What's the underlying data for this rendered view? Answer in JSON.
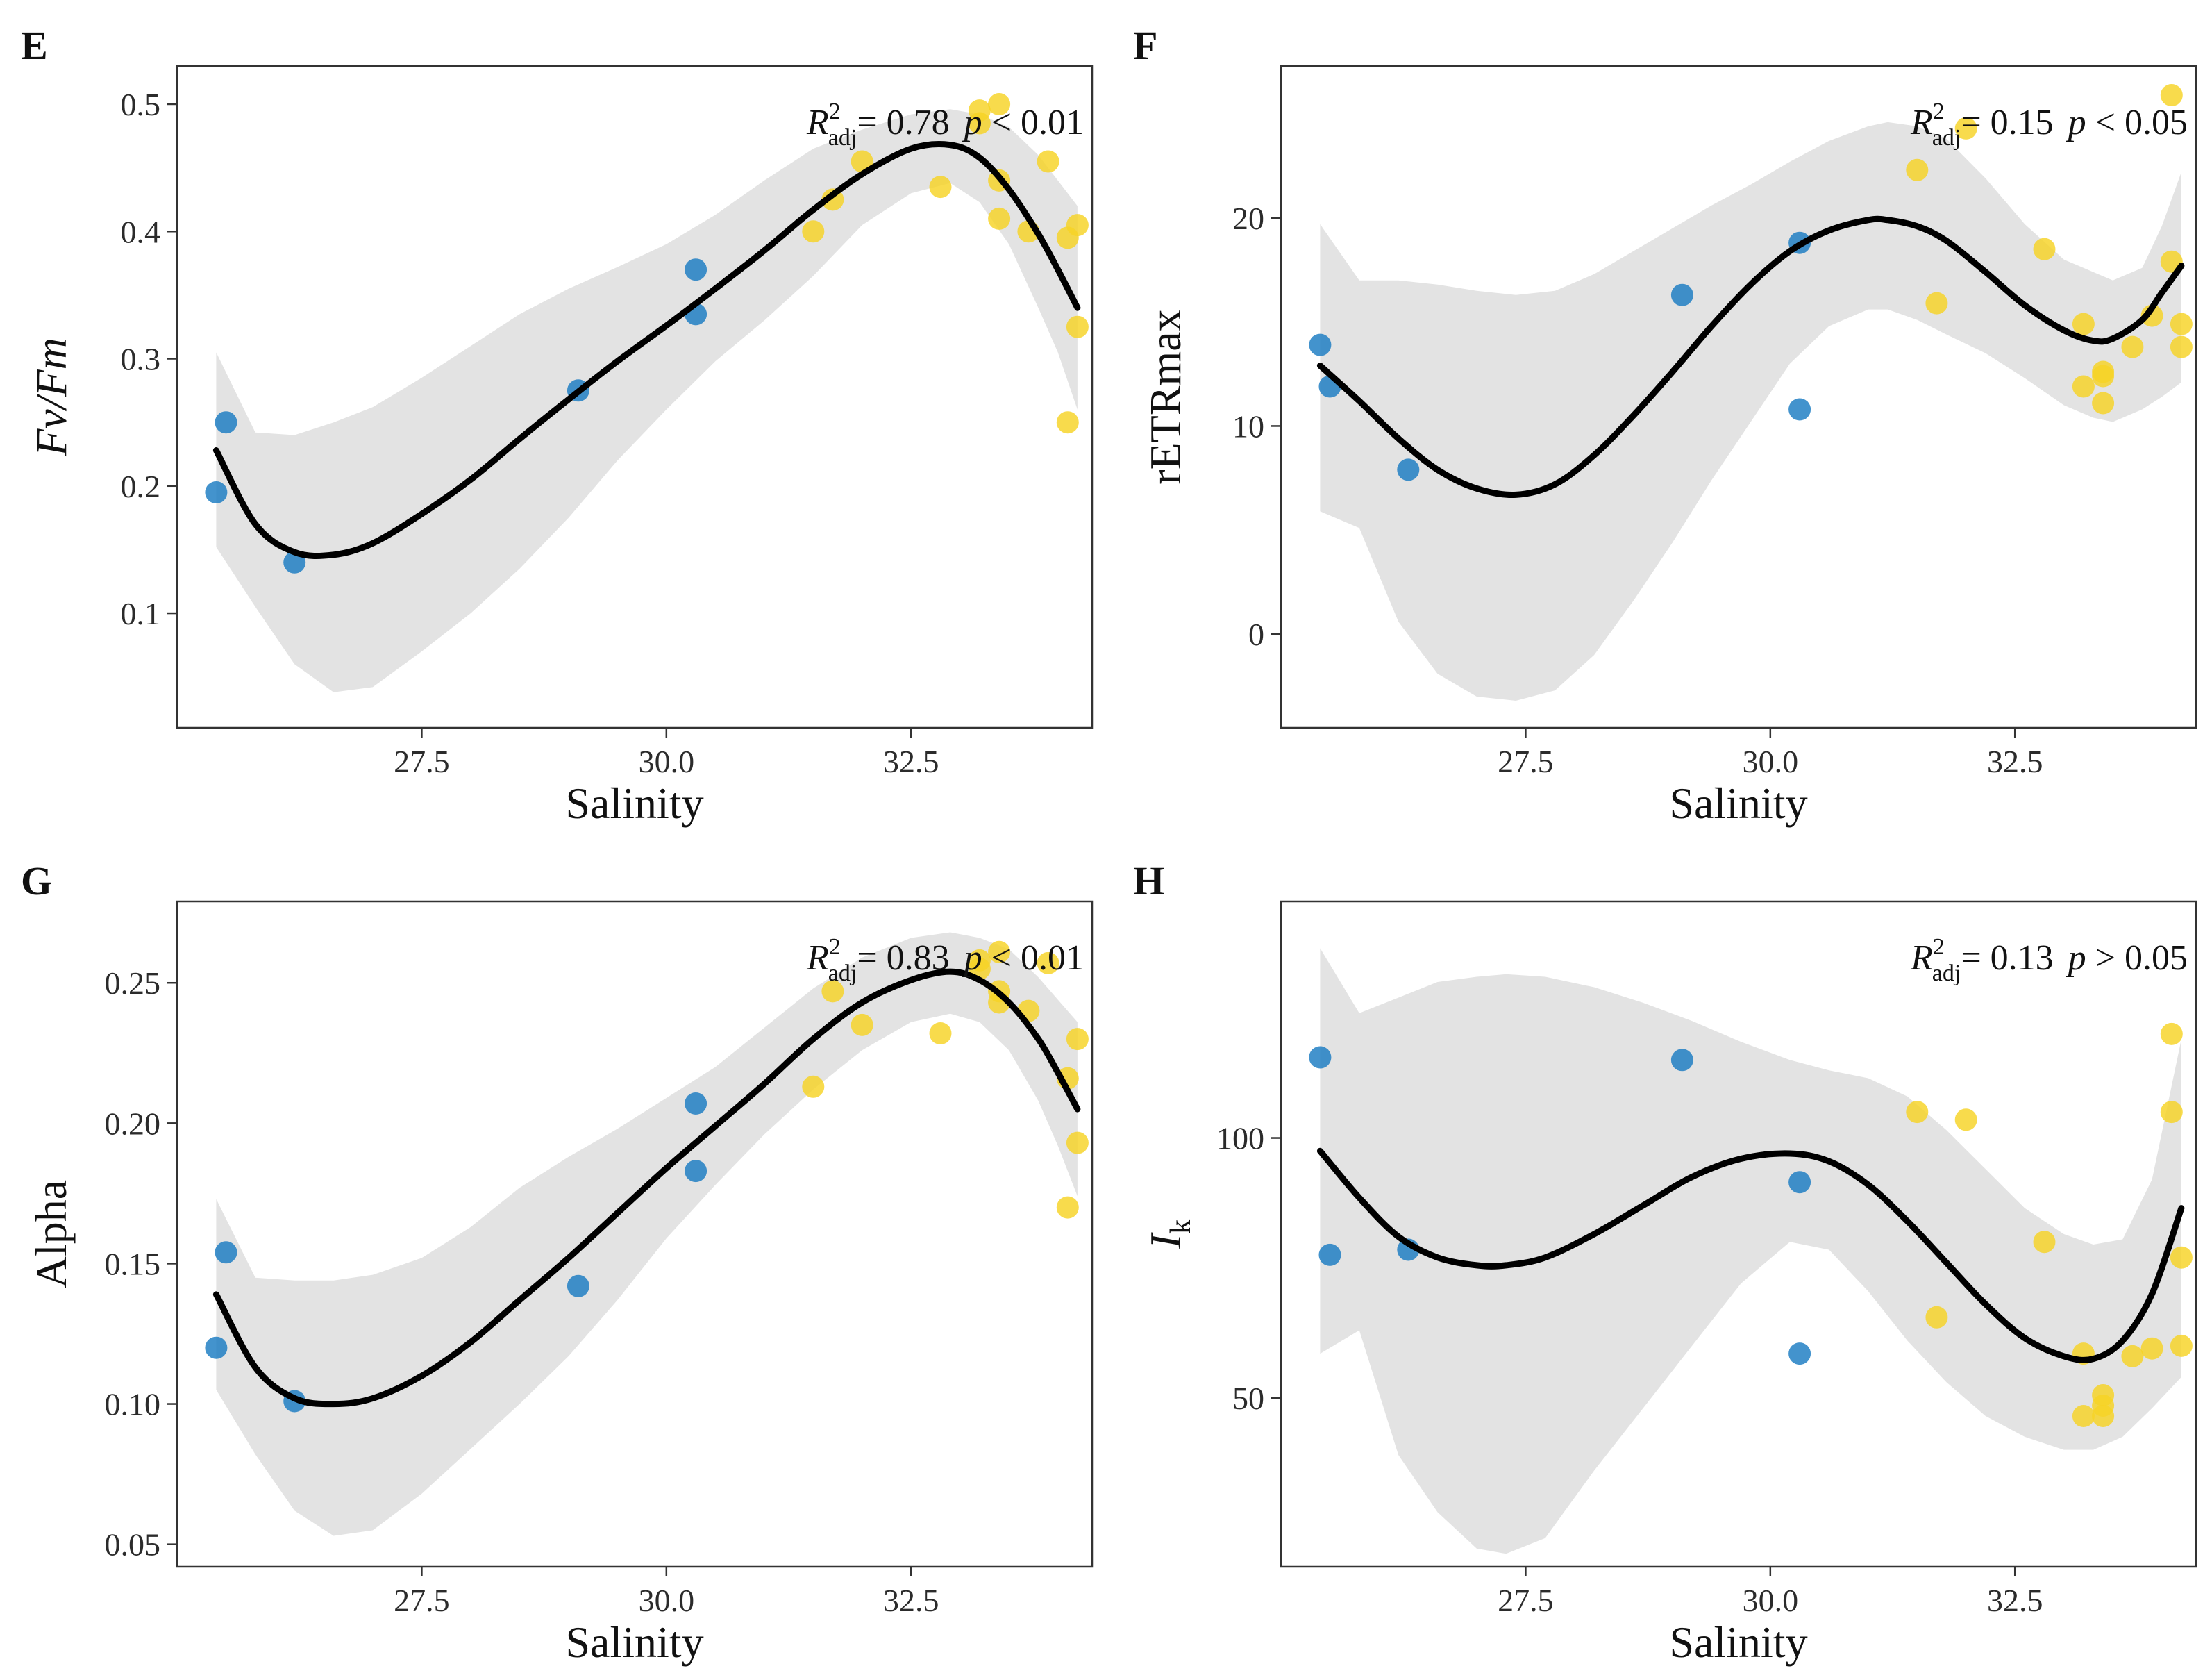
{
  "colors": {
    "point_low": "#1a7bc2",
    "point_high": "#f6d324",
    "band": "#e3e3e3",
    "fit": "#000000"
  },
  "chart_data": [
    {
      "type": "scatter",
      "panel_letter": "E",
      "xlabel": "Salinity",
      "ylabel": "Fv/Fm",
      "ylabel_italic": true,
      "xlim": [
        25.0,
        34.35
      ],
      "ylim": [
        0.01,
        0.53
      ],
      "xticks": [
        27.5,
        30.0,
        32.5
      ],
      "xtick_labels": [
        "27.5",
        "30.0",
        "32.5"
      ],
      "yticks": [
        0.1,
        0.2,
        0.3,
        0.4,
        0.5
      ],
      "ytick_labels": [
        "0.1",
        "0.2",
        "0.3",
        "0.4",
        "0.5"
      ],
      "annotation": {
        "r": "R",
        "sup": "2",
        "sub": "adj",
        "value": "= 0.78",
        "p": "p",
        "rel": "< 0.01"
      },
      "points": [
        {
          "x": 25.4,
          "y": 0.195
        },
        {
          "x": 25.5,
          "y": 0.25
        },
        {
          "x": 26.2,
          "y": 0.14
        },
        {
          "x": 29.1,
          "y": 0.275
        },
        {
          "x": 30.3,
          "y": 0.37
        },
        {
          "x": 30.3,
          "y": 0.335
        },
        {
          "x": 31.5,
          "y": 0.4
        },
        {
          "x": 31.7,
          "y": 0.425
        },
        {
          "x": 32.0,
          "y": 0.455
        },
        {
          "x": 32.8,
          "y": 0.435
        },
        {
          "x": 33.2,
          "y": 0.495
        },
        {
          "x": 33.2,
          "y": 0.485
        },
        {
          "x": 33.4,
          "y": 0.5
        },
        {
          "x": 33.4,
          "y": 0.44
        },
        {
          "x": 33.4,
          "y": 0.41
        },
        {
          "x": 33.7,
          "y": 0.4
        },
        {
          "x": 33.9,
          "y": 0.455
        },
        {
          "x": 34.1,
          "y": 0.395
        },
        {
          "x": 34.1,
          "y": 0.25
        },
        {
          "x": 34.2,
          "y": 0.405
        },
        {
          "x": 34.2,
          "y": 0.325
        }
      ],
      "fit": {
        "x": [
          25.4,
          25.8,
          26.2,
          26.6,
          27.0,
          27.5,
          28.0,
          28.5,
          29.0,
          29.5,
          30.0,
          30.5,
          31.0,
          31.5,
          32.0,
          32.5,
          32.9,
          33.2,
          33.5,
          33.8,
          34.0,
          34.2
        ],
        "y": [
          0.228,
          0.17,
          0.148,
          0.146,
          0.155,
          0.178,
          0.205,
          0.237,
          0.268,
          0.298,
          0.326,
          0.355,
          0.385,
          0.417,
          0.445,
          0.465,
          0.468,
          0.458,
          0.433,
          0.398,
          0.37,
          0.34
        ],
        "upper": [
          0.305,
          0.242,
          0.24,
          0.25,
          0.262,
          0.285,
          0.31,
          0.335,
          0.355,
          0.372,
          0.39,
          0.413,
          0.44,
          0.465,
          0.48,
          0.492,
          0.496,
          0.492,
          0.482,
          0.46,
          0.44,
          0.42
        ],
        "lower": [
          0.152,
          0.105,
          0.06,
          0.038,
          0.042,
          0.07,
          0.1,
          0.135,
          0.175,
          0.22,
          0.26,
          0.298,
          0.33,
          0.365,
          0.405,
          0.43,
          0.438,
          0.423,
          0.39,
          0.34,
          0.305,
          0.26
        ]
      }
    },
    {
      "type": "scatter",
      "panel_letter": "F",
      "xlabel": "Salinity",
      "ylabel": "rETRmax",
      "ylabel_italic": false,
      "xlim": [
        25.0,
        34.35
      ],
      "ylim": [
        -4.5,
        27.3
      ],
      "xticks": [
        27.5,
        30.0,
        32.5
      ],
      "xtick_labels": [
        "27.5",
        "30.0",
        "32.5"
      ],
      "yticks": [
        0,
        10,
        20
      ],
      "ytick_labels": [
        "0",
        "10",
        "20"
      ],
      "annotation": {
        "r": "R",
        "sup": "2",
        "sub": "adj",
        "value": "= 0.15",
        "p": "p",
        "rel": "< 0.05"
      },
      "points": [
        {
          "x": 25.4,
          "y": 13.9
        },
        {
          "x": 25.5,
          "y": 11.9
        },
        {
          "x": 26.3,
          "y": 7.9
        },
        {
          "x": 29.1,
          "y": 16.3
        },
        {
          "x": 30.3,
          "y": 18.8
        },
        {
          "x": 30.3,
          "y": 10.8
        },
        {
          "x": 31.5,
          "y": 22.3
        },
        {
          "x": 31.7,
          "y": 15.9
        },
        {
          "x": 32.0,
          "y": 24.3
        },
        {
          "x": 32.8,
          "y": 18.5
        },
        {
          "x": 33.2,
          "y": 14.9
        },
        {
          "x": 33.2,
          "y": 11.9
        },
        {
          "x": 33.4,
          "y": 12.6
        },
        {
          "x": 33.4,
          "y": 12.4
        },
        {
          "x": 33.4,
          "y": 11.1
        },
        {
          "x": 33.7,
          "y": 13.8
        },
        {
          "x": 33.9,
          "y": 15.3
        },
        {
          "x": 34.1,
          "y": 25.9
        },
        {
          "x": 34.1,
          "y": 17.9
        },
        {
          "x": 34.2,
          "y": 14.9
        },
        {
          "x": 34.2,
          "y": 13.8
        }
      ],
      "fit": {
        "x": [
          25.4,
          25.8,
          26.2,
          26.6,
          27.0,
          27.4,
          27.8,
          28.2,
          28.6,
          29.0,
          29.4,
          29.8,
          30.2,
          30.6,
          31.0,
          31.2,
          31.5,
          31.8,
          32.2,
          32.6,
          33.0,
          33.3,
          33.5,
          33.8,
          34.0,
          34.2
        ],
        "y": [
          12.9,
          11.2,
          9.4,
          7.9,
          7.0,
          6.7,
          7.2,
          8.6,
          10.5,
          12.6,
          14.8,
          16.8,
          18.4,
          19.4,
          19.9,
          19.9,
          19.6,
          18.9,
          17.4,
          15.8,
          14.6,
          14.1,
          14.2,
          15.1,
          16.4,
          17.7
        ],
        "upper": [
          19.7,
          17.0,
          17.0,
          16.8,
          16.5,
          16.3,
          16.5,
          17.3,
          18.4,
          19.5,
          20.6,
          21.6,
          22.7,
          23.7,
          24.4,
          24.6,
          24.4,
          23.8,
          21.9,
          19.7,
          18.0,
          17.4,
          17.0,
          17.6,
          19.6,
          22.2
        ],
        "lower": [
          5.9,
          5.1,
          0.6,
          -1.9,
          -3.0,
          -3.2,
          -2.7,
          -1.0,
          1.6,
          4.4,
          7.4,
          10.2,
          13.0,
          14.8,
          15.6,
          15.6,
          15.1,
          14.4,
          13.5,
          12.3,
          11.0,
          10.4,
          10.2,
          10.8,
          11.4,
          12.1
        ]
      }
    },
    {
      "type": "scatter",
      "panel_letter": "G",
      "xlabel": "Salinity",
      "ylabel": "Alpha",
      "ylabel_italic": false,
      "xlim": [
        25.0,
        34.35
      ],
      "ylim": [
        0.042,
        0.279
      ],
      "xticks": [
        27.5,
        30.0,
        32.5
      ],
      "xtick_labels": [
        "27.5",
        "30.0",
        "32.5"
      ],
      "yticks": [
        0.05,
        0.1,
        0.15,
        0.2,
        0.25
      ],
      "ytick_labels": [
        "0.05",
        "0.10",
        "0.15",
        "0.20",
        "0.25"
      ],
      "annotation": {
        "r": "R",
        "sup": "2",
        "sub": "adj",
        "value": "= 0.83",
        "p": "p",
        "rel": "< 0.01"
      },
      "points": [
        {
          "x": 25.4,
          "y": 0.12
        },
        {
          "x": 25.5,
          "y": 0.154
        },
        {
          "x": 26.2,
          "y": 0.101
        },
        {
          "x": 29.1,
          "y": 0.142
        },
        {
          "x": 30.3,
          "y": 0.207
        },
        {
          "x": 30.3,
          "y": 0.183
        },
        {
          "x": 31.5,
          "y": 0.213
        },
        {
          "x": 31.7,
          "y": 0.247
        },
        {
          "x": 32.0,
          "y": 0.235
        },
        {
          "x": 32.8,
          "y": 0.232
        },
        {
          "x": 33.2,
          "y": 0.258
        },
        {
          "x": 33.2,
          "y": 0.255
        },
        {
          "x": 33.4,
          "y": 0.261
        },
        {
          "x": 33.4,
          "y": 0.247
        },
        {
          "x": 33.4,
          "y": 0.243
        },
        {
          "x": 33.7,
          "y": 0.24
        },
        {
          "x": 33.9,
          "y": 0.257
        },
        {
          "x": 34.1,
          "y": 0.216
        },
        {
          "x": 34.1,
          "y": 0.17
        },
        {
          "x": 34.2,
          "y": 0.23
        },
        {
          "x": 34.2,
          "y": 0.193
        }
      ],
      "fit": {
        "x": [
          25.4,
          25.8,
          26.2,
          26.6,
          27.0,
          27.5,
          28.0,
          28.5,
          29.0,
          29.5,
          30.0,
          30.5,
          31.0,
          31.5,
          32.0,
          32.5,
          32.9,
          33.2,
          33.5,
          33.8,
          34.0,
          34.2
        ],
        "y": [
          0.139,
          0.113,
          0.102,
          0.1,
          0.102,
          0.11,
          0.122,
          0.137,
          0.152,
          0.168,
          0.184,
          0.199,
          0.214,
          0.23,
          0.243,
          0.251,
          0.254,
          0.251,
          0.243,
          0.23,
          0.218,
          0.205
        ],
        "upper": [
          0.173,
          0.145,
          0.144,
          0.144,
          0.146,
          0.152,
          0.163,
          0.177,
          0.188,
          0.198,
          0.209,
          0.22,
          0.234,
          0.248,
          0.259,
          0.266,
          0.268,
          0.266,
          0.262,
          0.252,
          0.244,
          0.236
        ],
        "lower": [
          0.105,
          0.082,
          0.062,
          0.053,
          0.055,
          0.068,
          0.084,
          0.1,
          0.117,
          0.137,
          0.159,
          0.178,
          0.196,
          0.212,
          0.226,
          0.236,
          0.239,
          0.236,
          0.226,
          0.208,
          0.192,
          0.174
        ]
      }
    },
    {
      "type": "scatter",
      "panel_letter": "H",
      "xlabel": "Salinity",
      "ylabel": "I",
      "ylabel_sub": "k",
      "ylabel_italic": true,
      "xlim": [
        25.0,
        34.35
      ],
      "ylim": [
        17.5,
        145.5
      ],
      "xticks": [
        27.5,
        30.0,
        32.5
      ],
      "xtick_labels": [
        "27.5",
        "30.0",
        "32.5"
      ],
      "yticks": [
        50,
        100
      ],
      "ytick_labels": [
        "50",
        "100"
      ],
      "annotation": {
        "r": "R",
        "sup": "2",
        "sub": "adj",
        "value": "= 0.13",
        "p": "p",
        "rel": "> 0.05"
      },
      "points": [
        {
          "x": 25.4,
          "y": 115.5
        },
        {
          "x": 25.5,
          "y": 77.5
        },
        {
          "x": 26.3,
          "y": 78.5
        },
        {
          "x": 29.1,
          "y": 115.0
        },
        {
          "x": 30.3,
          "y": 91.5
        },
        {
          "x": 30.3,
          "y": 58.5
        },
        {
          "x": 31.5,
          "y": 105.0
        },
        {
          "x": 31.7,
          "y": 65.5
        },
        {
          "x": 32.0,
          "y": 103.5
        },
        {
          "x": 32.8,
          "y": 80.0
        },
        {
          "x": 33.2,
          "y": 58.5
        },
        {
          "x": 33.2,
          "y": 46.5
        },
        {
          "x": 33.4,
          "y": 50.5
        },
        {
          "x": 33.4,
          "y": 48.5
        },
        {
          "x": 33.4,
          "y": 46.5
        },
        {
          "x": 33.7,
          "y": 58.0
        },
        {
          "x": 33.9,
          "y": 59.5
        },
        {
          "x": 34.1,
          "y": 120.0
        },
        {
          "x": 34.1,
          "y": 105.0
        },
        {
          "x": 34.2,
          "y": 77.0
        },
        {
          "x": 34.2,
          "y": 60.0
        }
      ],
      "fit": {
        "x": [
          25.4,
          25.8,
          26.2,
          26.6,
          27.0,
          27.3,
          27.7,
          28.2,
          28.7,
          29.2,
          29.7,
          30.2,
          30.6,
          31.0,
          31.4,
          31.8,
          32.2,
          32.6,
          33.0,
          33.3,
          33.6,
          33.9,
          34.2
        ],
        "y": [
          97.5,
          88.5,
          81.0,
          77.0,
          75.5,
          75.5,
          77.0,
          81.5,
          87.0,
          92.5,
          96.0,
          97.0,
          95.5,
          91.0,
          84.0,
          76.0,
          68.0,
          61.5,
          58.0,
          57.5,
          61.0,
          70.0,
          86.5
        ],
        "upper": [
          136.5,
          124.0,
          127.0,
          130.0,
          131.0,
          131.5,
          131.0,
          129.0,
          126.0,
          122.5,
          118.5,
          115.0,
          113.0,
          111.5,
          108.0,
          101.5,
          94.0,
          86.5,
          81.5,
          79.5,
          80.5,
          92.0,
          119.0
        ],
        "lower": [
          58.5,
          63.0,
          39.0,
          28.0,
          21.0,
          20.0,
          23.0,
          36.0,
          48.0,
          60.0,
          72.0,
          80.0,
          78.5,
          70.5,
          61.0,
          53.0,
          46.5,
          42.5,
          40.0,
          40.0,
          42.5,
          48.0,
          54.0
        ]
      }
    }
  ]
}
